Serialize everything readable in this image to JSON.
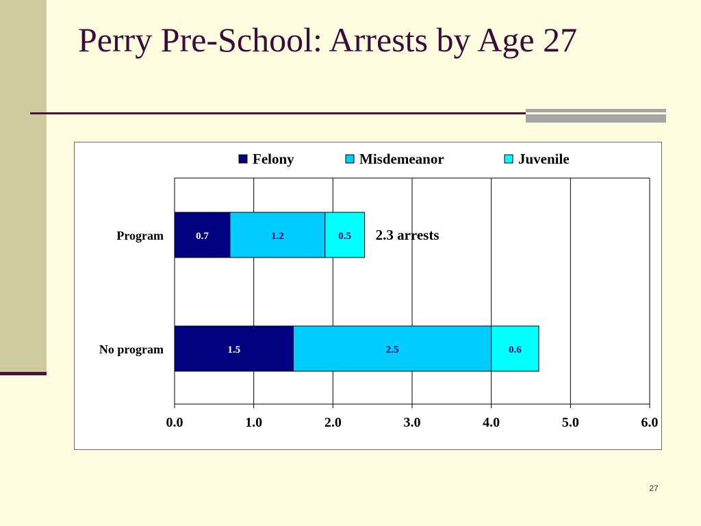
{
  "slide": {
    "title": "Perry Pre-School: Arrests by Age 27",
    "slide_number": "27"
  },
  "colors": {
    "background": "#FFFDE0",
    "side_band": "#CDCB9E",
    "accent_line": "#4A1240",
    "title_text": "#3B0B3A",
    "felony": "#000080",
    "misdemeanor": "#00CCFF",
    "juvenile": "#00FFFF"
  },
  "chart_data": {
    "type": "bar",
    "orientation": "horizontal",
    "stacked": true,
    "categories": [
      "Program",
      "No program"
    ],
    "series": [
      {
        "name": "Felony",
        "values": [
          0.7,
          1.5
        ],
        "color": "#000080",
        "labels": [
          "0.7",
          "1.5"
        ]
      },
      {
        "name": "Misdemeanor",
        "values": [
          1.2,
          2.5
        ],
        "color": "#00CCFF",
        "labels": [
          "1.2",
          "2.5"
        ]
      },
      {
        "name": "Juvenile",
        "values": [
          0.5,
          0.6
        ],
        "color": "#00FFFF",
        "labels": [
          "0.5",
          "0.6"
        ]
      }
    ],
    "xlim": [
      0,
      6
    ],
    "xticks": [
      "0.0",
      "1.0",
      "2.0",
      "3.0",
      "4.0",
      "5.0",
      "6.0"
    ],
    "grid": "vertical",
    "legend_position": "top",
    "annotations": [
      {
        "text": "2.3 arrests",
        "category": "Program"
      }
    ]
  }
}
